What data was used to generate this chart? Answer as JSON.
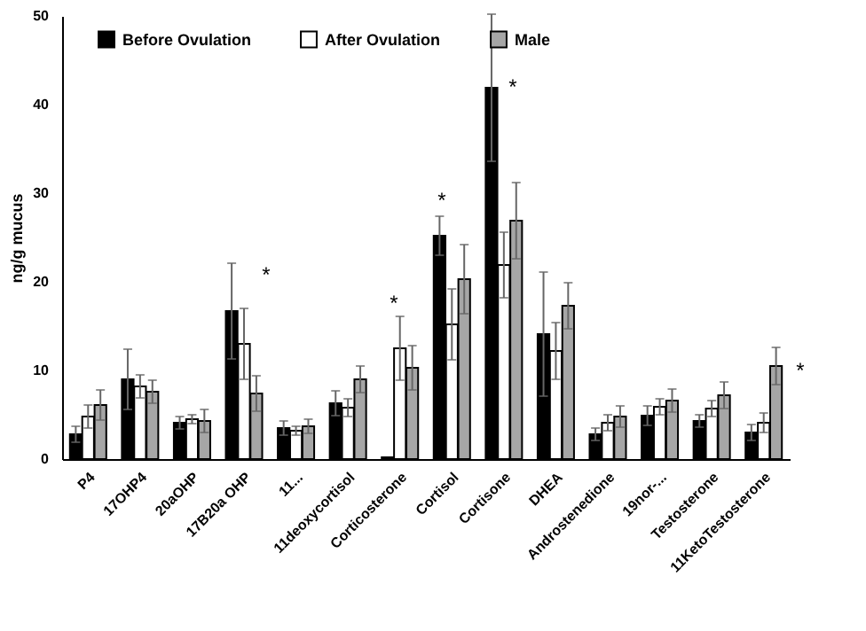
{
  "chart_data": {
    "type": "bar",
    "ylabel": "ng/g mucus",
    "categories": [
      "P4",
      "17OHP4",
      "20aOHP",
      "17B20a OHP",
      "11...",
      "11deoxycortisol",
      "Corticosterone",
      "Cortisol",
      "Cortisone",
      "DHEA",
      "Androstenedione",
      "19nor-...",
      "Testosterone",
      "11KetoTestosterone"
    ],
    "series": [
      {
        "name": "Before Ovulation",
        "color": "#000000",
        "values": [
          2.8,
          9.0,
          4.1,
          16.7,
          3.5,
          6.3,
          0.2,
          25.2,
          41.9,
          14.1,
          2.8,
          4.9,
          4.3,
          3.0
        ],
        "errors": [
          0.9,
          3.4,
          0.7,
          5.4,
          0.8,
          1.4,
          null,
          2.2,
          8.3,
          7.0,
          0.7,
          1.1,
          0.7,
          0.9
        ]
      },
      {
        "name": "After Ovulation",
        "color": "#ffffff",
        "values": [
          4.8,
          8.2,
          4.5,
          13.0,
          3.2,
          5.8,
          12.5,
          15.2,
          21.9,
          12.2,
          4.1,
          5.9,
          5.7,
          4.1
        ],
        "errors": [
          1.3,
          1.3,
          0.5,
          4.0,
          0.5,
          1.0,
          3.6,
          4.0,
          3.7,
          3.2,
          0.9,
          0.9,
          0.9,
          1.1
        ]
      },
      {
        "name": "Male",
        "color": "#a6a6a6",
        "values": [
          6.1,
          7.6,
          4.3,
          7.4,
          3.7,
          9.0,
          10.3,
          20.3,
          26.9,
          17.3,
          4.8,
          6.6,
          7.2,
          10.5
        ],
        "errors": [
          1.7,
          1.3,
          1.3,
          2.0,
          0.8,
          1.5,
          2.5,
          3.9,
          4.3,
          2.6,
          1.2,
          1.3,
          1.5,
          2.1
        ]
      }
    ],
    "ylim": [
      0,
      50
    ],
    "yticks": [
      0,
      10,
      20,
      30,
      40,
      50
    ],
    "grid": false,
    "legend": "top",
    "annotations": [
      "*",
      "*",
      "*",
      "*",
      "*"
    ]
  }
}
